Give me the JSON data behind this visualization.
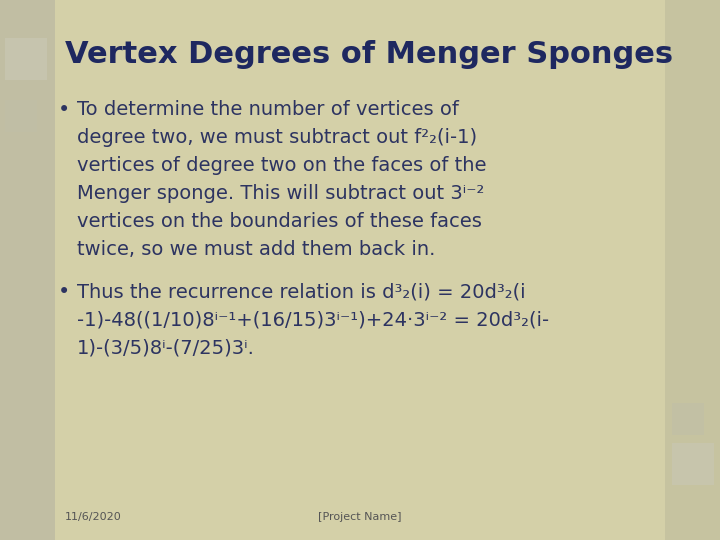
{
  "title": "Vertex Degrees of Menger Sponges",
  "title_color": "#1e2860",
  "background_color": "#d4d0a8",
  "bg_center_color": "#dedad4",
  "bullet1_lines": [
    "To determine the number of vertices of",
    "degree two, we must subtract out f²₂(i-1)",
    "vertices of degree two on the faces of the",
    "Menger sponge. This will subtract out 3ⁱ⁻²",
    "vertices on the boundaries of these faces",
    "twice, so we must add them back in."
  ],
  "bullet2_lines": [
    "Thus the recurrence relation is d³₂(i) = 20d³₂(i",
    "-1)-48((1/10)8ⁱ⁻¹+(16/15)3ⁱ⁻¹)+24·3ⁱ⁻² = 20d³₂(i-",
    "1)-(3/5)8ⁱ-(7/25)3ⁱ."
  ],
  "footer_left": "11/6/2020",
  "footer_center": "[Project Name]",
  "text_color": "#2d3461",
  "footer_color": "#555555",
  "title_fontsize": 22,
  "body_fontsize": 14,
  "footer_fontsize": 8,
  "left_panel_color": "#b0ae9a",
  "right_panel_color": "#c4c0a0"
}
